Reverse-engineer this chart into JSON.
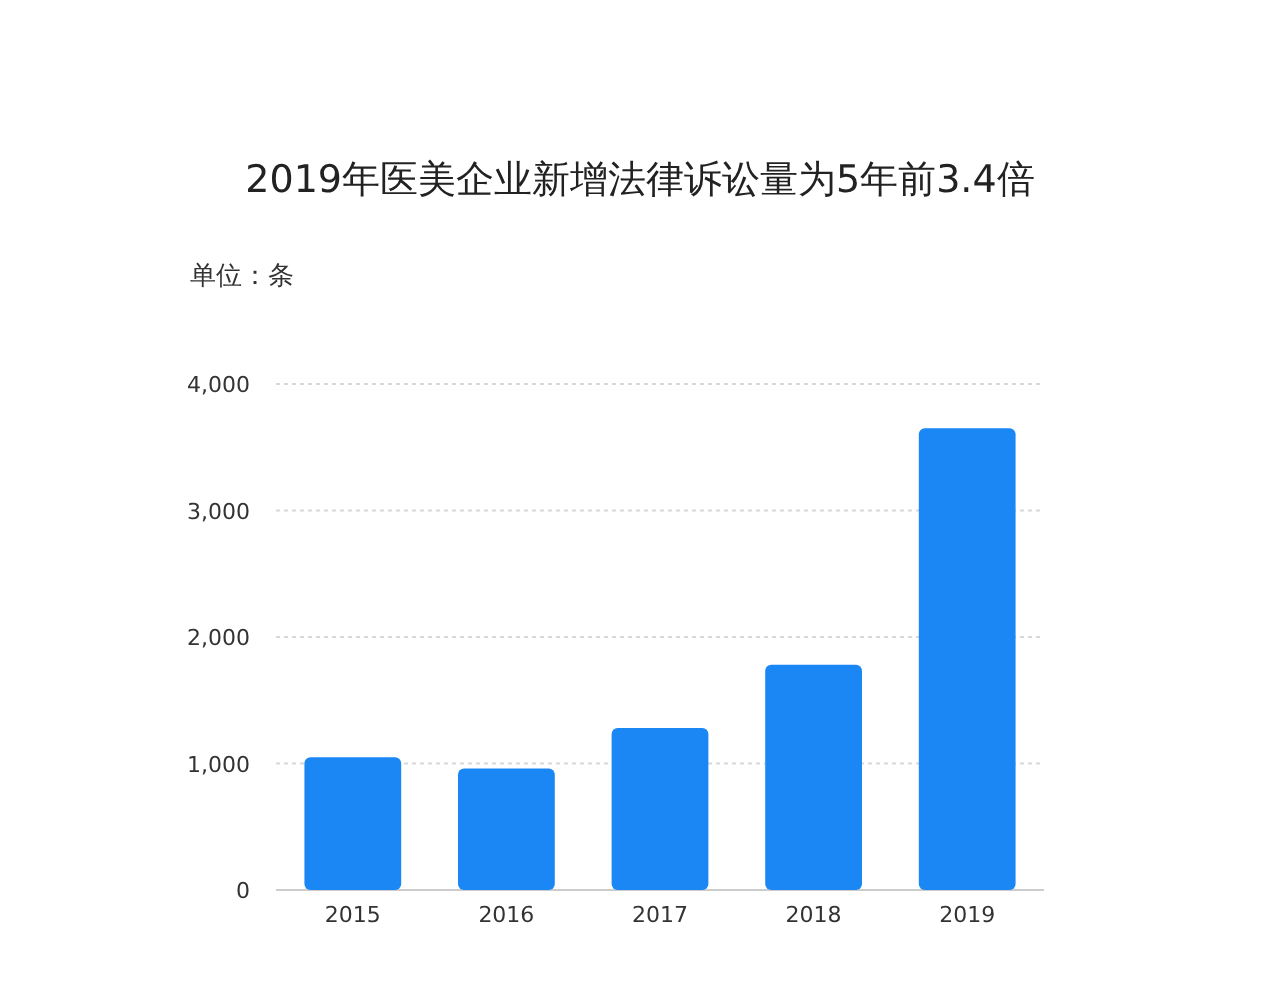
{
  "chart_data": {
    "type": "bar",
    "title": "2019年医美企业新增法律诉讼量为5年前3.4倍",
    "ylabel": "单位：条",
    "categories": [
      "2015",
      "2016",
      "2017",
      "2018",
      "2019"
    ],
    "values": [
      1050,
      960,
      1280,
      1780,
      3650
    ],
    "color": "#1a87f5",
    "ylim": [
      0,
      4000
    ],
    "yticks": [
      {
        "value": 0,
        "label": "0"
      },
      {
        "value": 1000,
        "label": "1,000"
      },
      {
        "value": 2000,
        "label": "2,000"
      },
      {
        "value": 3000,
        "label": "3,000"
      },
      {
        "value": 4000,
        "label": "4,000"
      }
    ],
    "grid": "y"
  }
}
